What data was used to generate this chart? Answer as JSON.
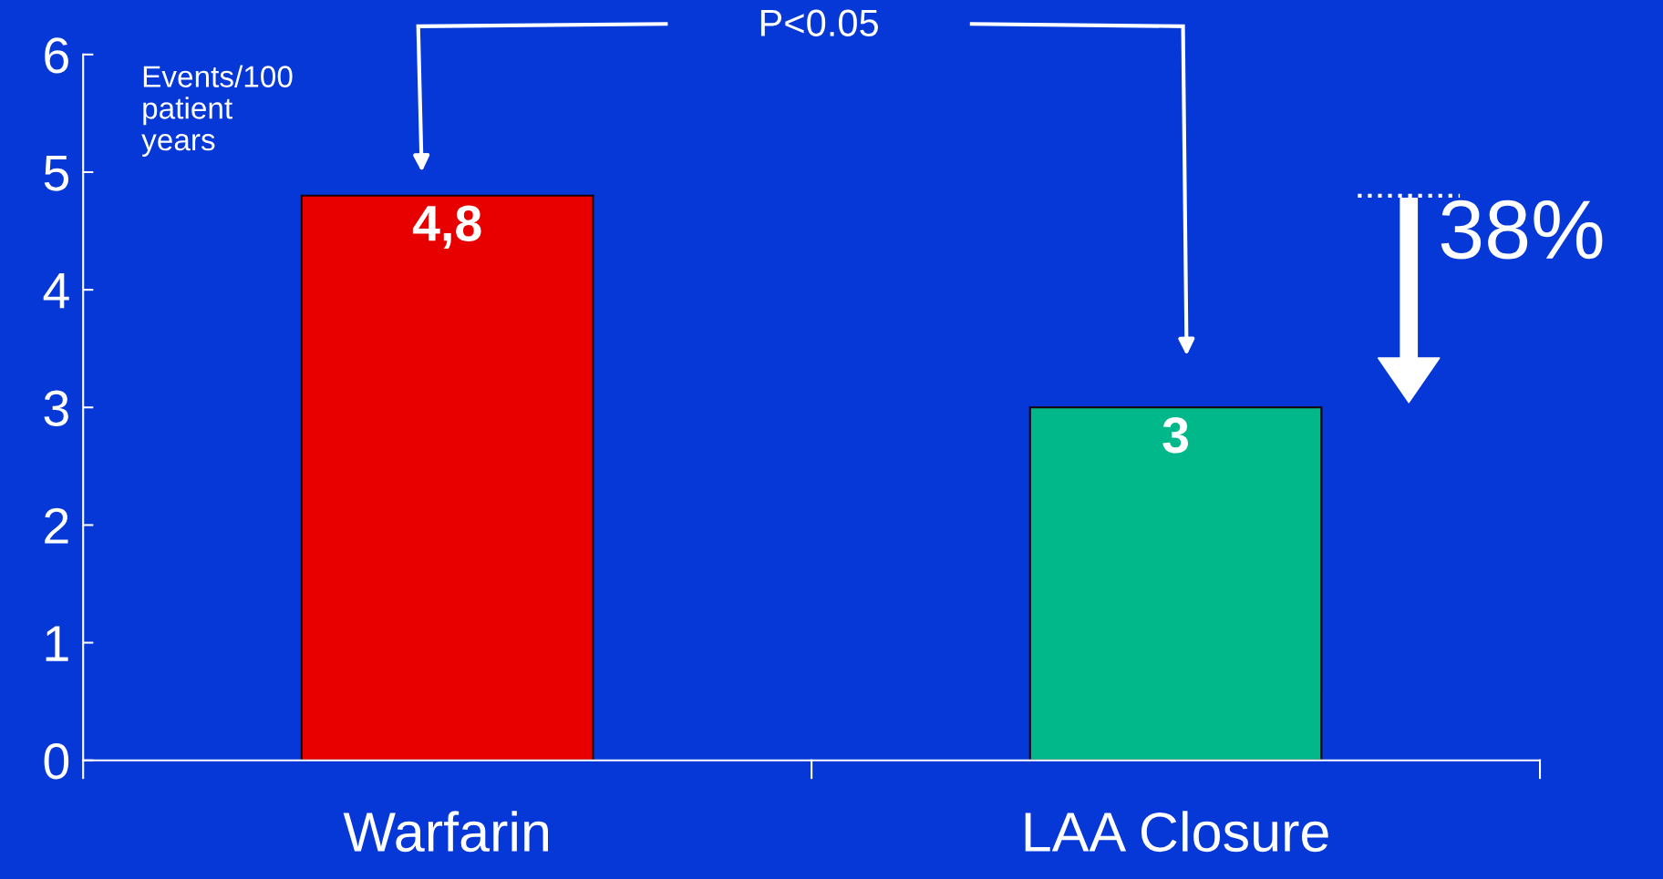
{
  "chart_data": {
    "type": "bar",
    "ylabel": "Events/100\npatient\nyears",
    "categories": [
      "Warfarin",
      "LAA Closure"
    ],
    "values": [
      4.8,
      3
    ],
    "colors": [
      "#e80000",
      "#00b88a"
    ],
    "value_labels": [
      "4,8",
      "3"
    ],
    "ylim": [
      0,
      6
    ],
    "yticks": [
      0,
      1,
      2,
      3,
      4,
      5,
      6
    ],
    "grid": false,
    "annotations": [
      "P<0.05",
      "38%"
    ]
  }
}
